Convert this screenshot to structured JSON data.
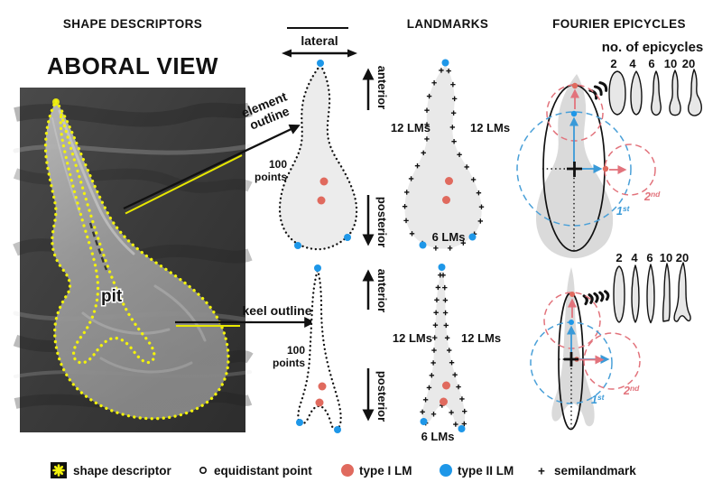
{
  "figure": {
    "columns": {
      "shape_descriptors": {
        "header": "SHAPE DESCRIPTORS",
        "title": "ABORAL VIEW",
        "sem_pit_label": "pit",
        "element_callout_line1": "element",
        "element_callout_line2": "outline",
        "keel_callout": "keel outline",
        "lateral_label": "lateral",
        "anterior_label": "anterior",
        "posterior_label": "posterior",
        "points_line1": "100",
        "points_line2": "points"
      },
      "landmarks": {
        "header": "LANDMARKS",
        "element_lms_left": "12 LMs",
        "element_lms_right": "12 LMs",
        "element_lms_bottom": "6 LMs",
        "keel_lms_left": "12 LMs",
        "keel_lms_right": "12 LMs",
        "keel_lms_bottom": "6 LMs"
      },
      "fourier": {
        "header": "FOURIER EPICYCLES",
        "subtitle": "no. of epicycles",
        "epicycle_counts": [
          "2",
          "4",
          "6",
          "10",
          "20"
        ],
        "harmonic1_num": "1",
        "harmonic1_suffix": "st",
        "harmonic2_num": "2",
        "harmonic2_suffix": "nd"
      }
    },
    "legend": {
      "shape_descriptor": {
        "icon": "yellow-flower-dot-icon",
        "label": "shape descriptor"
      },
      "equidistant_point": {
        "icon": "open-circle-icon",
        "label": "equidistant point"
      },
      "type1_lm": {
        "icon": "red-dot-icon",
        "label": "type I LM"
      },
      "type2_lm": {
        "icon": "blue-dot-icon",
        "label": "type II LM"
      },
      "semilandmark": {
        "icon": "plus-icon",
        "label": "+",
        "text": "semilandmark"
      }
    },
    "colors": {
      "type1_lm": "#e06a5e",
      "type2_lm": "#1e97e8",
      "harmonic1_blue": "#3a9ad8",
      "harmonic2_red": "#e2737c",
      "descriptor_yellow": "#f2f20c"
    }
  }
}
